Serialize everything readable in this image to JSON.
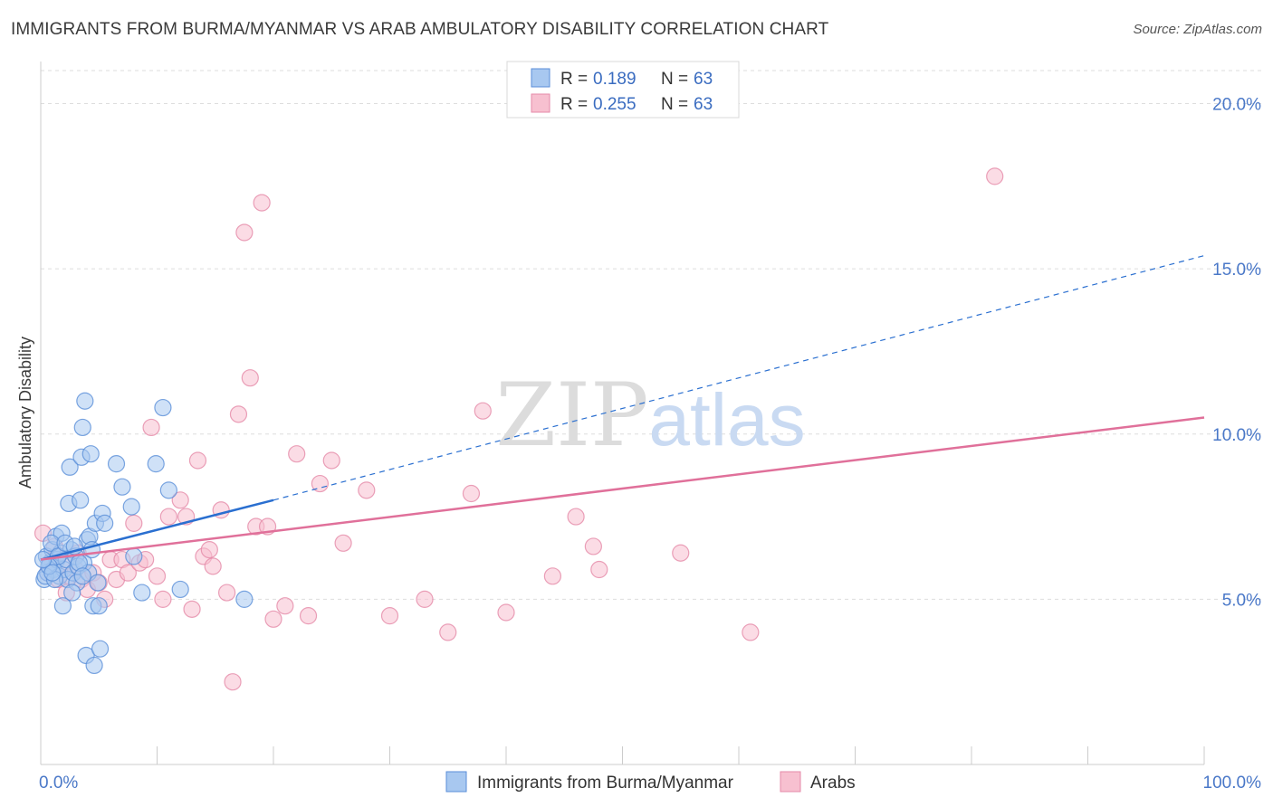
{
  "header": {
    "title": "IMMIGRANTS FROM BURMA/MYANMAR VS ARAB AMBULATORY DISABILITY CORRELATION CHART",
    "source": "Source: ZipAtlas.com"
  },
  "watermark": {
    "zip": "ZIP",
    "atlas": "atlas"
  },
  "legend": {
    "items": [
      {
        "r_label": "R =",
        "r_value": "0.189",
        "n_label": "N =",
        "n_value": "63"
      },
      {
        "r_label": "R =",
        "r_value": "0.255",
        "n_label": "N =",
        "n_value": "63"
      }
    ]
  },
  "colors": {
    "blue_fill": "#a8c8f0",
    "blue_stroke": "#5a8ed8",
    "blue_line": "#2a6fd0",
    "pink_fill": "#f7c0d0",
    "pink_stroke": "#e58aa8",
    "pink_line": "#e0709a",
    "tick_text": "#4a78c8",
    "grid": "#dddddd"
  },
  "chart_data": {
    "type": "scatter",
    "xlabel": "",
    "ylabel": "Ambulatory Disability",
    "xlim": [
      0,
      100
    ],
    "ylim": [
      0,
      21
    ],
    "x_ticks": [
      "0.0%",
      "100.0%"
    ],
    "y_ticks": [
      {
        "value": 5,
        "label": "5.0%"
      },
      {
        "value": 10,
        "label": "10.0%"
      },
      {
        "value": 15,
        "label": "15.0%"
      },
      {
        "value": 20,
        "label": "20.0%"
      }
    ],
    "grid": true,
    "legend_position": "top-center",
    "series": [
      {
        "name": "Immigrants from Burma/Myanmar",
        "color_key": "blue",
        "trend": {
          "x0": 0,
          "y0": 6.2,
          "x1": 20,
          "y1": 8.0,
          "dash_to_x": 100,
          "dash_to_y": 15.4
        },
        "points": [
          [
            0.3,
            5.6
          ],
          [
            0.5,
            6.3
          ],
          [
            0.6,
            5.8
          ],
          [
            0.8,
            6.1
          ],
          [
            1.0,
            6.5
          ],
          [
            1.1,
            5.9
          ],
          [
            1.3,
            6.9
          ],
          [
            1.4,
            6.2
          ],
          [
            1.6,
            5.7
          ],
          [
            1.7,
            6.4
          ],
          [
            1.8,
            7.0
          ],
          [
            1.9,
            4.8
          ],
          [
            2.0,
            5.9
          ],
          [
            2.2,
            6.2
          ],
          [
            2.3,
            5.6
          ],
          [
            2.4,
            7.9
          ],
          [
            2.5,
            9.0
          ],
          [
            2.6,
            6.5
          ],
          [
            2.8,
            5.8
          ],
          [
            3.0,
            6.3
          ],
          [
            3.1,
            5.5
          ],
          [
            3.2,
            6.0
          ],
          [
            3.4,
            8.0
          ],
          [
            3.5,
            9.3
          ],
          [
            3.6,
            10.2
          ],
          [
            3.7,
            6.1
          ],
          [
            3.8,
            11.0
          ],
          [
            3.9,
            3.3
          ],
          [
            4.0,
            6.8
          ],
          [
            4.1,
            5.8
          ],
          [
            4.2,
            6.9
          ],
          [
            4.3,
            9.4
          ],
          [
            4.4,
            6.5
          ],
          [
            4.5,
            4.8
          ],
          [
            4.6,
            3.0
          ],
          [
            4.7,
            7.3
          ],
          [
            4.9,
            5.5
          ],
          [
            5.0,
            4.8
          ],
          [
            5.1,
            3.5
          ],
          [
            5.3,
            7.6
          ],
          [
            5.5,
            7.3
          ],
          [
            6.5,
            9.1
          ],
          [
            7.0,
            8.4
          ],
          [
            7.8,
            7.8
          ],
          [
            8.0,
            6.3
          ],
          [
            8.7,
            5.2
          ],
          [
            9.9,
            9.1
          ],
          [
            10.5,
            10.8
          ],
          [
            11.0,
            8.3
          ],
          [
            12.0,
            5.3
          ],
          [
            17.5,
            5.0
          ],
          [
            0.4,
            5.7
          ],
          [
            0.9,
            6.7
          ],
          [
            1.2,
            5.6
          ],
          [
            1.5,
            6.3
          ],
          [
            2.1,
            6.7
          ],
          [
            2.7,
            5.2
          ],
          [
            3.3,
            6.1
          ],
          [
            0.7,
            6.0
          ],
          [
            1.0,
            5.8
          ],
          [
            2.9,
            6.6
          ],
          [
            3.6,
            5.7
          ],
          [
            0.2,
            6.2
          ]
        ]
      },
      {
        "name": "Arabs",
        "color_key": "pink",
        "trend": {
          "x0": 0,
          "y0": 6.2,
          "x1": 100,
          "y1": 10.5
        },
        "points": [
          [
            0.2,
            7.0
          ],
          [
            0.6,
            5.8
          ],
          [
            1.0,
            6.2
          ],
          [
            1.5,
            5.6
          ],
          [
            2.0,
            6.0
          ],
          [
            2.5,
            5.7
          ],
          [
            3.0,
            5.9
          ],
          [
            3.5,
            5.6
          ],
          [
            4.0,
            5.3
          ],
          [
            4.5,
            5.8
          ],
          [
            5.0,
            5.5
          ],
          [
            5.5,
            5.0
          ],
          [
            6.0,
            6.2
          ],
          [
            6.5,
            5.6
          ],
          [
            7.0,
            6.2
          ],
          [
            7.5,
            5.8
          ],
          [
            8.0,
            7.3
          ],
          [
            8.5,
            6.1
          ],
          [
            9.0,
            6.2
          ],
          [
            9.5,
            10.2
          ],
          [
            10.0,
            5.7
          ],
          [
            10.5,
            5.0
          ],
          [
            11.0,
            7.5
          ],
          [
            12.0,
            8.0
          ],
          [
            12.5,
            7.5
          ],
          [
            13.0,
            4.7
          ],
          [
            13.5,
            9.2
          ],
          [
            14.0,
            6.3
          ],
          [
            14.5,
            6.5
          ],
          [
            15.5,
            7.7
          ],
          [
            16.0,
            5.2
          ],
          [
            16.5,
            2.5
          ],
          [
            17.0,
            10.6
          ],
          [
            17.5,
            16.1
          ],
          [
            18.0,
            11.7
          ],
          [
            18.5,
            7.2
          ],
          [
            19.0,
            17.0
          ],
          [
            19.5,
            7.2
          ],
          [
            20.0,
            4.4
          ],
          [
            21.0,
            4.8
          ],
          [
            22.0,
            9.4
          ],
          [
            23.0,
            4.5
          ],
          [
            24.0,
            8.5
          ],
          [
            25.0,
            9.2
          ],
          [
            26.0,
            6.7
          ],
          [
            28.0,
            8.3
          ],
          [
            30.0,
            4.5
          ],
          [
            33.0,
            5.0
          ],
          [
            35.0,
            4.0
          ],
          [
            37.0,
            8.2
          ],
          [
            38.0,
            10.7
          ],
          [
            40.0,
            4.6
          ],
          [
            44.0,
            5.7
          ],
          [
            46.0,
            7.5
          ],
          [
            47.5,
            6.6
          ],
          [
            48.0,
            5.9
          ],
          [
            55.0,
            6.4
          ],
          [
            61.0,
            4.0
          ],
          [
            82.0,
            17.8
          ],
          [
            1.2,
            6.6
          ],
          [
            2.2,
            5.2
          ],
          [
            3.2,
            6.4
          ],
          [
            14.8,
            6.0
          ]
        ]
      }
    ]
  }
}
